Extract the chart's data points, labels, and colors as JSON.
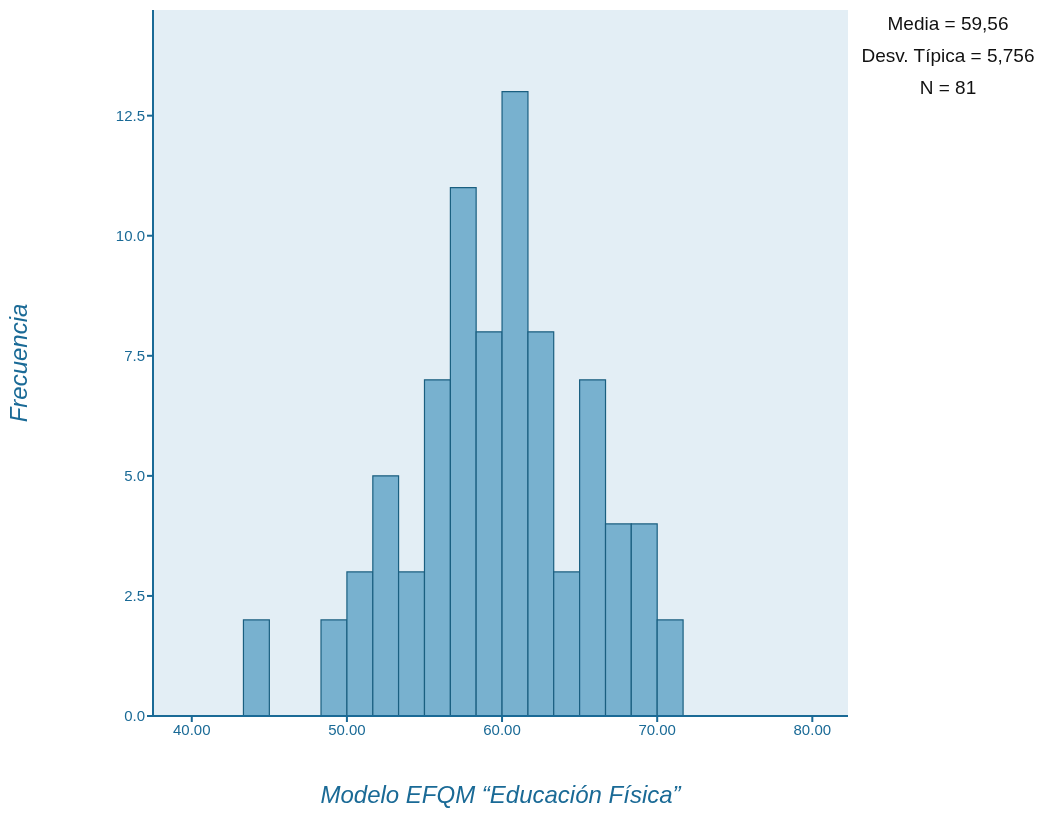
{
  "chart_data": {
    "type": "histogram",
    "xlabel": "Modelo EFQM “Educación Física”",
    "ylabel": "Frecuencia",
    "bins": [
      43.33,
      45.0,
      46.67,
      48.33,
      50.0,
      51.67,
      53.33,
      55.0,
      56.67,
      58.33,
      60.0,
      61.67,
      63.33,
      65.0,
      66.67,
      68.33,
      70.0,
      71.67
    ],
    "values": [
      2,
      0,
      0,
      2,
      3,
      5,
      3,
      7,
      11,
      8,
      13,
      8,
      3,
      7,
      4,
      4,
      2
    ],
    "color": "#78b1cf",
    "xlim": [
      37.5,
      82.3
    ],
    "xticks": [
      {
        "value": 40,
        "label": "40.00"
      },
      {
        "value": 50,
        "label": "50.00"
      },
      {
        "value": 60,
        "label": "60.00"
      },
      {
        "value": 70,
        "label": "70.00"
      },
      {
        "value": 80,
        "label": "80.00"
      }
    ],
    "ylim": [
      0,
      14.7
    ],
    "yticks": [
      {
        "value": 0,
        "label": "0.0"
      },
      {
        "value": 2.5,
        "label": "2.5"
      },
      {
        "value": 5,
        "label": "5.0"
      },
      {
        "value": 7.5,
        "label": "7.5"
      },
      {
        "value": 10,
        "label": "10.0"
      },
      {
        "value": 12.5,
        "label": "12.5"
      }
    ],
    "grid": false,
    "annotations": [
      "Media = 59,56",
      "Desv. Típica = 5,756",
      "N = 81"
    ]
  }
}
